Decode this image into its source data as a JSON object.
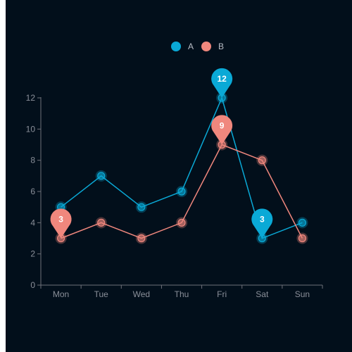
{
  "chart_data": {
    "type": "line",
    "categories": [
      "Mon",
      "Tue",
      "Wed",
      "Thu",
      "Fri",
      "Sat",
      "Sun"
    ],
    "series": [
      {
        "name": "A",
        "values": [
          5,
          7,
          5,
          6,
          12,
          3,
          4
        ],
        "color": "#0aa9d6",
        "markPoints": [
          {
            "type": "max",
            "category": "Fri",
            "value": 12,
            "label": "12"
          },
          {
            "type": "min",
            "category": "Sat",
            "value": 3,
            "label": "3"
          }
        ]
      },
      {
        "name": "B",
        "values": [
          3,
          4,
          3,
          4,
          9,
          8,
          3
        ],
        "color": "#f0877d",
        "markPoints": [
          {
            "type": "max",
            "category": "Fri",
            "value": 9,
            "label": "9"
          },
          {
            "type": "min",
            "category": "Mon",
            "value": 3,
            "label": "3"
          }
        ]
      }
    ],
    "ylim": [
      0,
      12
    ],
    "yticks": [
      0,
      2,
      4,
      6,
      8,
      10,
      12
    ],
    "grid": false,
    "legend": "top-center",
    "background": "#020f1b",
    "axis_color": "#6e7079"
  }
}
